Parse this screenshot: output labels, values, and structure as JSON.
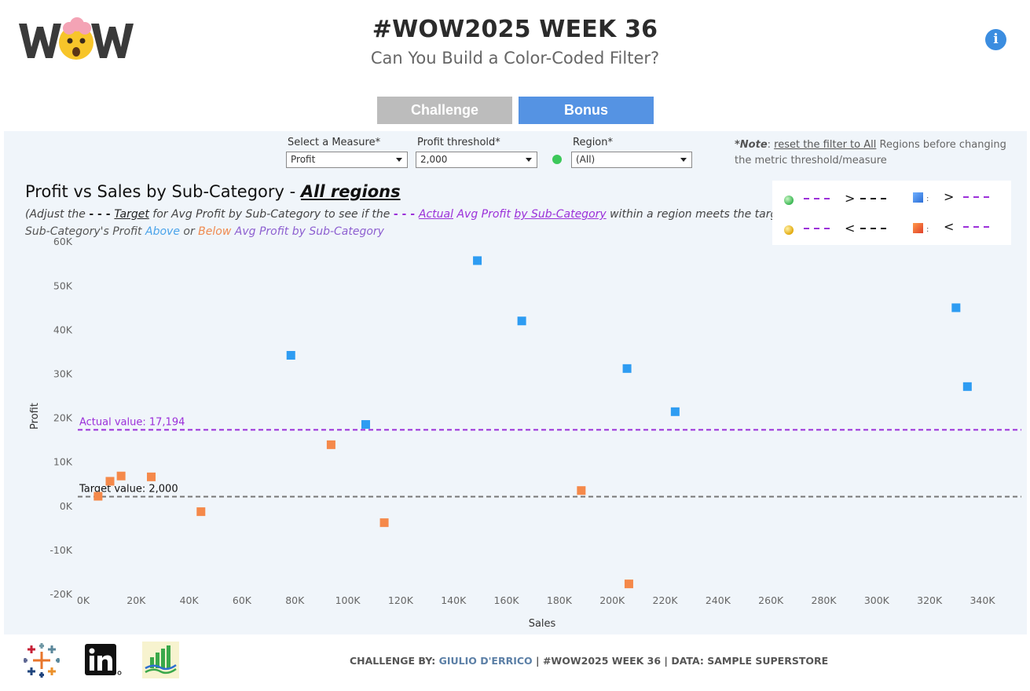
{
  "header": {
    "logo_text": "WOW",
    "title": "#WOW2025 WEEK 36",
    "subtitle": "Can You Build a Color-Coded Filter?",
    "info_icon": "info-icon"
  },
  "tabs": [
    {
      "label": "Challenge",
      "color": "#bcbcbc"
    },
    {
      "label": "Bonus",
      "color": "#5593e3"
    }
  ],
  "controls": {
    "measure": {
      "label": "Select a Measure*",
      "value": "Profit"
    },
    "threshold": {
      "label": "Profit threshold*",
      "value": "2,000"
    },
    "region": {
      "label": "Region*",
      "value": "(All)"
    },
    "note": {
      "prefix": "*Note",
      "colon": ": ",
      "link": "reset the filter to All",
      "suffix": " Regions before changing the metric threshold/measure"
    }
  },
  "chart_header": {
    "title_prefix": "Profit vs Sales by Sub-Category",
    "title_sep": " - ",
    "title_region": "All regions",
    "instr_a": "(Adjust the ",
    "instr_dash1": "- - - ",
    "instr_target": "Target",
    "instr_b": " for Avg Profit by Sub-Category  to see if the ",
    "instr_dash2": "- - - ",
    "instr_actual": "Actual",
    "instr_c": " Avg Profit ",
    "instr_by": "by Sub-Category",
    "instr_d": " within a region meets the target)",
    "instr2_a": "Sub-Category's Profit ",
    "instr2_above": "Above",
    "instr2_or": " or ",
    "instr2_below": "Below",
    "instr2_b": " Avg Profit by Sub-Category"
  },
  "legend": {
    "gt": ">",
    "lt": "<",
    "colon": ":"
  },
  "chart_data": {
    "type": "scatter",
    "xlabel": "Sales",
    "ylabel": "Profit",
    "xlim": [
      0,
      355000
    ],
    "ylim": [
      -25000,
      62000
    ],
    "x_ticks": [
      0,
      20000,
      40000,
      60000,
      80000,
      100000,
      120000,
      140000,
      160000,
      180000,
      200000,
      220000,
      240000,
      260000,
      280000,
      300000,
      320000,
      340000
    ],
    "x_tick_labels": [
      "0K",
      "20K",
      "40K",
      "60K",
      "80K",
      "100K",
      "120K",
      "140K",
      "160K",
      "180K",
      "200K",
      "220K",
      "240K",
      "260K",
      "280K",
      "300K",
      "320K",
      "340K"
    ],
    "y_ticks": [
      -20000,
      -10000,
      0,
      10000,
      20000,
      30000,
      40000,
      50000,
      60000
    ],
    "y_tick_labels": [
      "-20K",
      "-10K",
      "0K",
      "10K",
      "20K",
      "30K",
      "40K",
      "50K",
      "60K"
    ],
    "grid": false,
    "reference_lines": [
      {
        "label": "Actual value: 17,194",
        "value": 17194,
        "color": "#9b30d9"
      },
      {
        "label": "Target value: 2,000",
        "value": 2000,
        "color": "#777777"
      }
    ],
    "series": [
      {
        "name": "Above",
        "color": "#2e9cf2",
        "points": [
          {
            "x": 149000,
            "y": 55600
          },
          {
            "x": 165800,
            "y": 41900
          },
          {
            "x": 330000,
            "y": 44900
          },
          {
            "x": 78500,
            "y": 34100
          },
          {
            "x": 205600,
            "y": 31100
          },
          {
            "x": 334300,
            "y": 27000
          },
          {
            "x": 223800,
            "y": 21300
          },
          {
            "x": 106800,
            "y": 18400
          }
        ]
      },
      {
        "name": "Below",
        "color": "#f5894a",
        "points": [
          {
            "x": 93700,
            "y": 13800
          },
          {
            "x": 14300,
            "y": 6700
          },
          {
            "x": 25700,
            "y": 6500
          },
          {
            "x": 10100,
            "y": 5500
          },
          {
            "x": 5600,
            "y": 2100
          },
          {
            "x": 188300,
            "y": 3400
          },
          {
            "x": 44500,
            "y": -1400
          },
          {
            "x": 113800,
            "y": -3900
          },
          {
            "x": 206300,
            "y": -17800
          }
        ]
      }
    ]
  },
  "footer": {
    "credit_prefix": "CHALLENGE BY: ",
    "credit_author": "GIULIO D'ERRICO",
    "credit_suffix": " | #WOW2025 WEEK 36 | DATA: SAMPLE SUPERSTORE",
    "icons": [
      "tableau-icon",
      "linkedin-icon",
      "chart-logo-icon"
    ]
  }
}
